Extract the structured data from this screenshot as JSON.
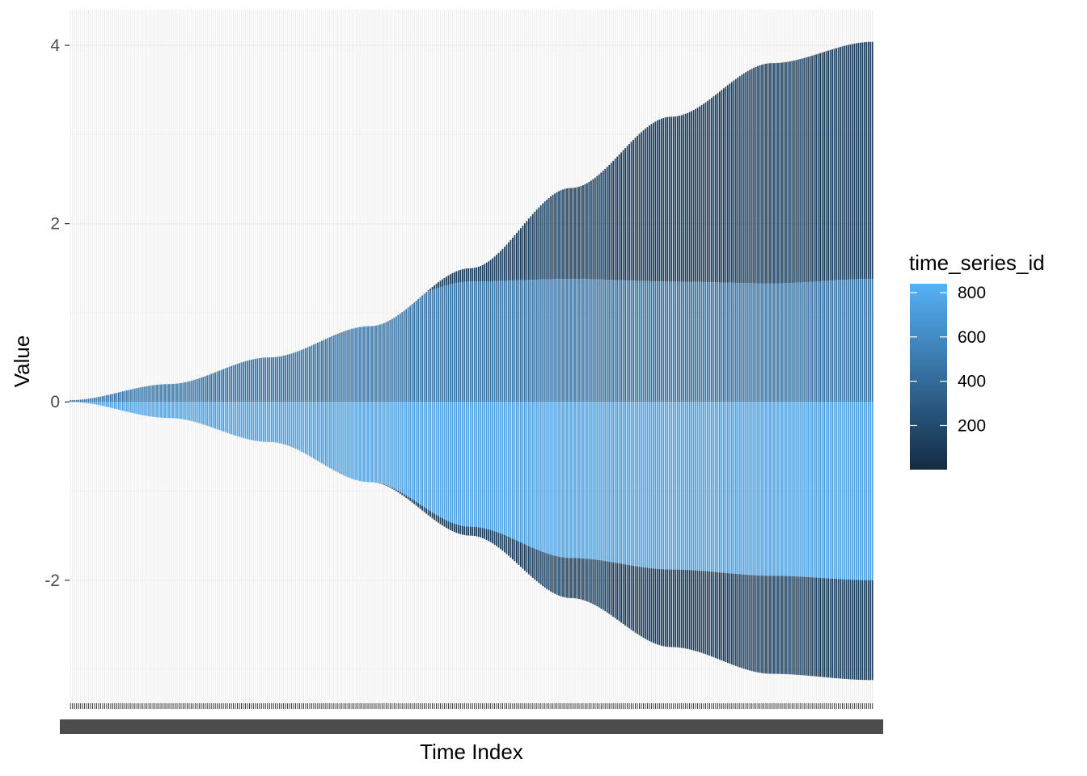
{
  "chart_data": {
    "type": "bar",
    "xlabel": "Time Index",
    "ylabel": "Value",
    "ylim": [
      -3.38,
      4.4
    ],
    "y_ticks": [
      -2,
      0,
      2,
      4
    ],
    "n_time_points": 400,
    "grid": true,
    "x_tick_labels_overlapping": true,
    "series_envelopes": [
      {
        "name": "upper_dark",
        "points": [
          [
            1,
            0.02
          ],
          [
            50,
            0.2
          ],
          [
            100,
            0.5
          ],
          [
            150,
            0.85
          ],
          [
            200,
            1.5
          ],
          [
            250,
            2.4
          ],
          [
            300,
            3.2
          ],
          [
            350,
            3.8
          ],
          [
            400,
            4.04
          ]
        ]
      },
      {
        "name": "upper_light",
        "points": [
          [
            1,
            0.02
          ],
          [
            50,
            0.2
          ],
          [
            100,
            0.5
          ],
          [
            130,
            0.85
          ],
          [
            160,
            1.15
          ],
          [
            200,
            1.35
          ],
          [
            250,
            1.38
          ],
          [
            300,
            1.35
          ],
          [
            350,
            1.33
          ],
          [
            400,
            1.38
          ]
        ]
      },
      {
        "name": "lower_light",
        "points": [
          [
            1,
            0.0
          ],
          [
            50,
            -0.18
          ],
          [
            100,
            -0.45
          ],
          [
            150,
            -0.9
          ],
          [
            200,
            -1.4
          ],
          [
            250,
            -1.75
          ],
          [
            300,
            -1.88
          ],
          [
            350,
            -1.95
          ],
          [
            400,
            -2.0
          ]
        ]
      },
      {
        "name": "lower_dark",
        "points": [
          [
            1,
            0.0
          ],
          [
            50,
            -0.18
          ],
          [
            100,
            -0.45
          ],
          [
            150,
            -0.9
          ],
          [
            200,
            -1.5
          ],
          [
            250,
            -2.2
          ],
          [
            300,
            -2.75
          ],
          [
            350,
            -3.05
          ],
          [
            400,
            -3.12
          ]
        ]
      }
    ],
    "legend": {
      "title": "time_series_id",
      "type": "colorbar",
      "position": "right",
      "labels": [
        "800",
        "600",
        "400",
        "200"
      ],
      "values": [
        800,
        600,
        400,
        200
      ],
      "range": [
        1,
        840
      ],
      "colors": {
        "low": "#132B43",
        "high": "#56B1F7"
      }
    }
  }
}
